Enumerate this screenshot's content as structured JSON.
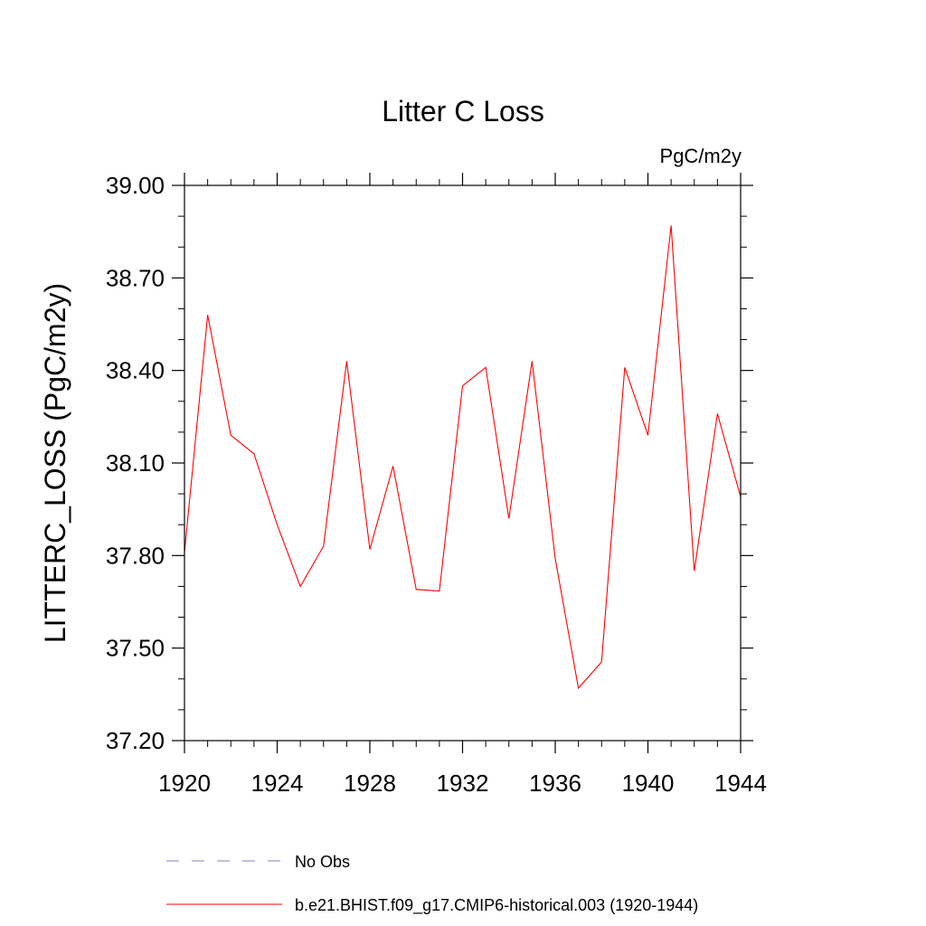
{
  "chart_data": {
    "type": "line",
    "title": "Litter C Loss",
    "units": "PgC/m2y",
    "ylabel": "LITTERC_LOSS  (PgC/m2y)",
    "xlabel": "",
    "xlim": [
      1920,
      1944
    ],
    "ylim": [
      37.2,
      39.0
    ],
    "x_ticks": [
      1920,
      1924,
      1928,
      1932,
      1936,
      1940,
      1944
    ],
    "x_tick_labels": [
      "1920",
      "1924",
      "1928",
      "1932",
      "1936",
      "1940",
      "1944"
    ],
    "y_ticks": [
      37.2,
      37.5,
      37.8,
      38.1,
      38.4,
      38.7,
      39.0
    ],
    "y_tick_labels": [
      "37.20",
      "37.50",
      "37.80",
      "38.10",
      "38.40",
      "38.70",
      "39.00"
    ],
    "grid": false,
    "legend_position": "bottom",
    "series": [
      {
        "name": "b.e21.BHIST.f09_g17.CMIP6-historical.003 (1920-1944)",
        "color": "#ff0000",
        "style": "solid",
        "x": [
          1920,
          1921,
          1922,
          1923,
          1924,
          1925,
          1926,
          1927,
          1928,
          1929,
          1930,
          1931,
          1932,
          1933,
          1934,
          1935,
          1936,
          1937,
          1938,
          1939,
          1940,
          1941,
          1942,
          1943,
          1944
        ],
        "y": [
          37.81,
          38.58,
          38.19,
          38.13,
          37.9,
          37.7,
          37.83,
          38.43,
          37.82,
          38.09,
          37.69,
          37.685,
          38.35,
          38.41,
          37.92,
          38.43,
          37.79,
          37.37,
          37.455,
          38.41,
          38.19,
          38.87,
          37.75,
          38.26,
          37.99
        ]
      }
    ],
    "legend": [
      {
        "label": "No Obs",
        "color": "#8080c0",
        "style": "dashed"
      },
      {
        "label": "b.e21.BHIST.f09_g17.CMIP6-historical.003 (1920-1944)",
        "color": "#ff0000",
        "style": "solid"
      }
    ]
  }
}
